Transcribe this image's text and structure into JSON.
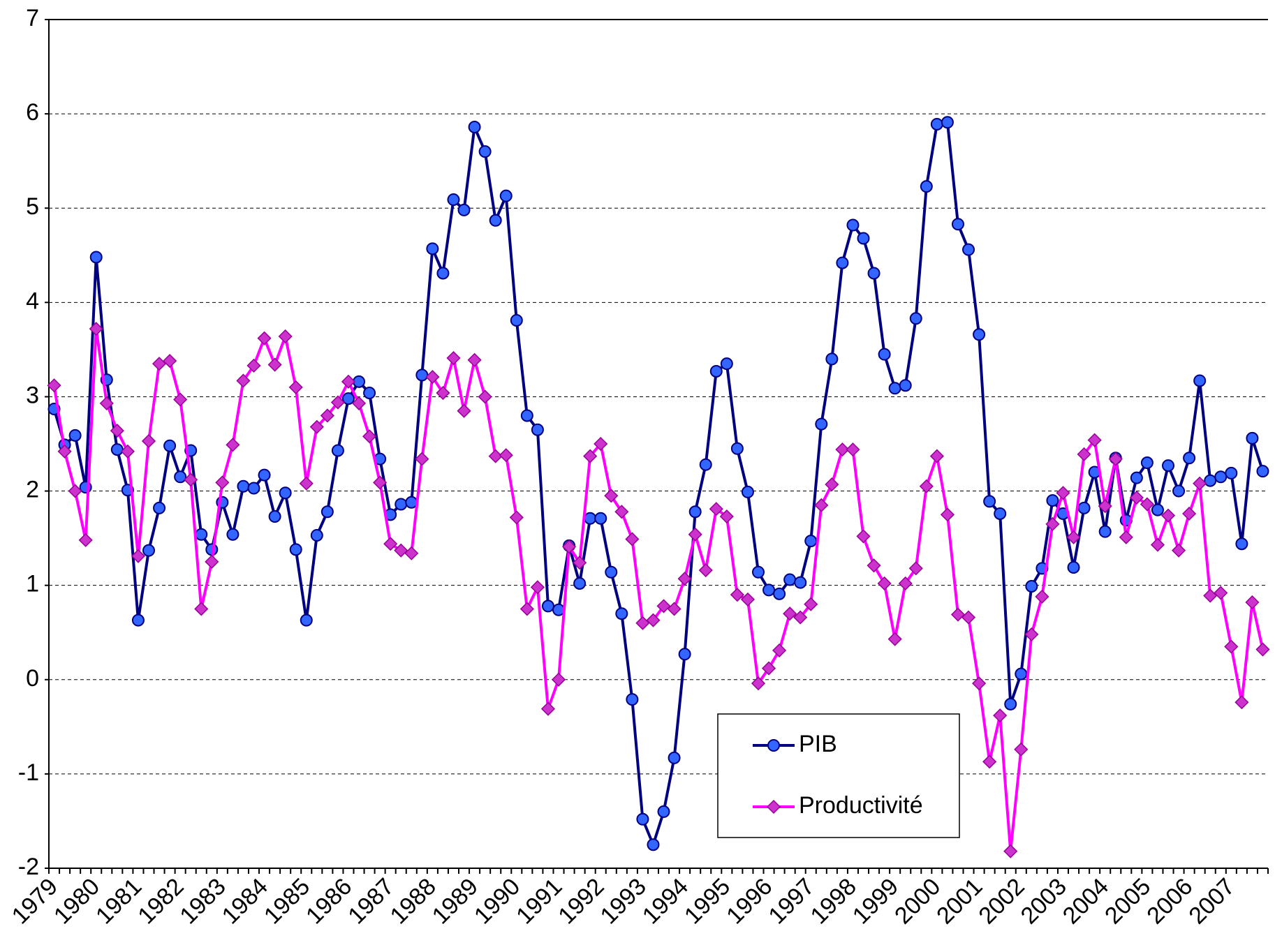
{
  "chart_data": {
    "type": "line",
    "categories": [
      "1979",
      null,
      null,
      null,
      "1980",
      null,
      null,
      null,
      "1981",
      null,
      null,
      null,
      "1982",
      null,
      null,
      null,
      "1983",
      null,
      null,
      null,
      "1984",
      null,
      null,
      null,
      "1985",
      null,
      null,
      null,
      "1986",
      null,
      null,
      null,
      "1987",
      null,
      null,
      null,
      "1988",
      null,
      null,
      null,
      "1989",
      null,
      null,
      null,
      "1990",
      null,
      null,
      null,
      "1991",
      null,
      null,
      null,
      "1992",
      null,
      null,
      null,
      "1993",
      null,
      null,
      null,
      "1994",
      null,
      null,
      null,
      "1995",
      null,
      null,
      null,
      "1996",
      null,
      null,
      null,
      "1997",
      null,
      null,
      null,
      "1998",
      null,
      null,
      null,
      "1999",
      null,
      null,
      null,
      "2000",
      null,
      null,
      null,
      "2001",
      null,
      null,
      null,
      "2002",
      null,
      null,
      null,
      "2003",
      null,
      null,
      null,
      "2004",
      null,
      null,
      null,
      "2005",
      null,
      null,
      null,
      "2006",
      null,
      null,
      null,
      "2007",
      null,
      null,
      null
    ],
    "series": [
      {
        "name": "PIB",
        "color": "#000080",
        "marker": "circle",
        "marker_color": "#3366ff",
        "values": [
          2.87,
          2.49,
          2.59,
          2.04,
          4.48,
          3.18,
          2.44,
          2.01,
          0.63,
          1.37,
          1.82,
          2.48,
          2.15,
          2.43,
          1.54,
          1.38,
          1.88,
          1.54,
          2.05,
          2.03,
          2.17,
          1.73,
          1.98,
          1.38,
          0.63,
          1.53,
          1.78,
          2.43,
          2.98,
          3.16,
          3.04,
          2.34,
          1.75,
          1.86,
          1.88,
          3.23,
          4.57,
          4.31,
          5.09,
          4.98,
          5.86,
          5.6,
          4.87,
          5.13,
          3.81,
          2.8,
          2.65,
          0.78,
          0.74,
          1.42,
          1.02,
          1.71,
          1.71,
          1.14,
          0.7,
          -0.21,
          -1.48,
          -1.75,
          -1.4,
          -0.83,
          0.27,
          1.78,
          2.28,
          3.27,
          3.35,
          2.45,
          1.99,
          1.14,
          0.95,
          0.91,
          1.06,
          1.03,
          1.47,
          2.71,
          3.4,
          4.42,
          4.82,
          4.68,
          4.31,
          3.45,
          3.09,
          3.12,
          3.83,
          5.23,
          5.89,
          5.91,
          4.83,
          4.56,
          3.66,
          1.89,
          1.76,
          -0.26,
          0.06,
          0.99,
          1.18,
          1.9,
          1.76,
          1.19,
          1.82,
          2.2,
          1.57,
          2.35,
          1.69,
          2.14,
          2.3,
          1.8,
          2.27,
          2.0,
          2.35,
          3.17,
          2.11,
          2.15,
          2.19,
          1.44,
          2.56,
          2.21
        ]
      },
      {
        "name": "Productivité",
        "color": "#ff00ff",
        "marker": "diamond",
        "marker_color": "#cc33cc",
        "values": [
          3.12,
          2.42,
          2.0,
          1.48,
          3.72,
          2.93,
          2.64,
          2.42,
          1.31,
          2.53,
          3.35,
          3.38,
          2.97,
          2.12,
          0.75,
          1.25,
          2.09,
          2.49,
          3.17,
          3.33,
          3.62,
          3.34,
          3.64,
          3.1,
          2.08,
          2.68,
          2.8,
          2.94,
          3.16,
          2.93,
          2.58,
          2.09,
          1.44,
          1.37,
          1.34,
          2.34,
          3.21,
          3.04,
          3.41,
          2.85,
          3.39,
          3.0,
          2.37,
          2.38,
          1.72,
          0.75,
          0.98,
          -0.31,
          0.0,
          1.41,
          1.24,
          2.37,
          2.5,
          1.95,
          1.78,
          1.49,
          0.6,
          0.63,
          0.78,
          0.75,
          1.07,
          1.54,
          1.16,
          1.81,
          1.73,
          0.9,
          0.85,
          -0.04,
          0.12,
          0.31,
          0.7,
          0.66,
          0.8,
          1.85,
          2.07,
          2.44,
          2.44,
          1.52,
          1.21,
          1.02,
          0.43,
          1.02,
          1.18,
          2.05,
          2.37,
          1.75,
          0.69,
          0.66,
          -0.04,
          -0.87,
          -0.38,
          -1.82,
          -0.74,
          0.48,
          0.88,
          1.65,
          1.98,
          1.51,
          2.39,
          2.54,
          1.84,
          2.34,
          1.51,
          1.93,
          1.86,
          1.43,
          1.74,
          1.37,
          1.76,
          2.08,
          0.89,
          0.92,
          0.35,
          -0.24,
          0.82,
          0.32
        ]
      }
    ],
    "ylim": [
      -2,
      7
    ],
    "yticks": [
      -2,
      -1,
      0,
      1,
      2,
      3,
      4,
      5,
      6,
      7
    ],
    "grid": true,
    "legend": "lower-center"
  }
}
